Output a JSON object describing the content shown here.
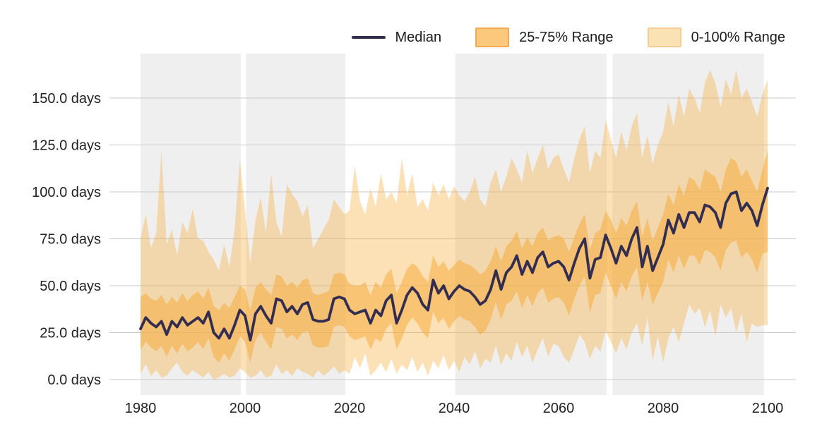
{
  "chart_data": {
    "type": "line",
    "title": "",
    "xlabel": "",
    "ylabel": "",
    "unit": "days",
    "x_start": 1980,
    "x_end": 2100,
    "x_step": 1,
    "x_ticks": [
      1980,
      2000,
      2020,
      2040,
      2060,
      2080,
      2100
    ],
    "y_ticks": [
      0,
      25,
      50,
      75,
      100,
      125,
      150
    ],
    "y_tick_labels": [
      "0.0 days",
      "25.0 days",
      "50.0 days",
      "75.0 days",
      "100.0 days",
      "125.0 days",
      "150.0 days"
    ],
    "ylim": [
      0,
      150
    ],
    "legend_position": "top-right",
    "grid": true,
    "colors": {
      "median_line": "#332D51",
      "range_fill": "#F6AE3F",
      "period_band": "#EFEFEF",
      "gridline": "#C9C9C9",
      "tick_text": "#222222",
      "background": "#FFFFFF"
    },
    "layout_hints": {
      "highlight_periods": [
        [
          1980,
          1999.2
        ],
        [
          2000.2,
          2019.2
        ],
        [
          2040.2,
          2069.2
        ],
        [
          2070.3,
          2099.3
        ]
      ]
    },
    "series": [
      {
        "name": "Median",
        "type": "line",
        "color": "#332D51",
        "values": [
          27,
          33,
          30,
          28,
          31,
          24,
          31,
          28,
          33,
          29,
          31,
          33,
          30,
          36,
          25,
          22,
          27,
          22,
          29,
          37,
          34,
          21,
          35,
          39,
          34,
          30,
          43,
          42,
          36,
          39,
          35,
          40,
          41,
          32,
          31,
          31,
          32,
          43,
          44,
          43,
          37,
          35,
          36,
          37,
          30,
          37,
          34,
          42,
          45,
          30,
          37,
          45,
          49,
          46,
          40,
          37,
          53,
          46,
          50,
          43,
          47,
          50,
          48,
          47,
          44,
          40,
          42,
          48,
          58,
          48,
          57,
          60,
          66,
          56,
          63,
          57,
          65,
          68,
          60,
          62,
          63,
          60,
          53,
          62,
          70,
          75,
          54,
          64,
          65,
          77,
          70,
          62,
          71,
          66,
          75,
          81,
          60,
          71,
          58,
          65,
          72,
          85,
          78,
          88,
          81,
          89,
          89,
          84,
          93,
          92,
          89,
          81,
          94,
          99,
          100,
          90,
          94,
          90,
          82,
          93,
          102
        ]
      },
      {
        "name": "25-75% Range",
        "type": "band",
        "color": "#F6AE3F",
        "opacity": 0.55,
        "lower": [
          16,
          20,
          17,
          15,
          18,
          12,
          18,
          14,
          19,
          15,
          17,
          20,
          16,
          22,
          12,
          9,
          14,
          10,
          16,
          23,
          20,
          9,
          21,
          25,
          20,
          16,
          28,
          27,
          22,
          24,
          21,
          25,
          26,
          18,
          17,
          17,
          18,
          28,
          29,
          28,
          23,
          21,
          22,
          23,
          16,
          22,
          20,
          27,
          30,
          16,
          22,
          29,
          33,
          30,
          25,
          22,
          36,
          30,
          33,
          27,
          31,
          34,
          32,
          31,
          28,
          24,
          26,
          32,
          41,
          32,
          40,
          42,
          47,
          38,
          45,
          39,
          46,
          49,
          41,
          43,
          44,
          41,
          34,
          43,
          50,
          55,
          36,
          45,
          46,
          57,
          50,
          43,
          52,
          47,
          55,
          60,
          42,
          52,
          40,
          46,
          52,
          64,
          57,
          66,
          59,
          66,
          66,
          61,
          69,
          68,
          65,
          58,
          69,
          73,
          74,
          65,
          68,
          64,
          57,
          67,
          68
        ],
        "upper": [
          44,
          46,
          43,
          42,
          45,
          40,
          44,
          41,
          46,
          42,
          45,
          47,
          43,
          49,
          39,
          37,
          41,
          38,
          44,
          50,
          48,
          37,
          49,
          52,
          48,
          45,
          56,
          55,
          50,
          52,
          49,
          53,
          54,
          46,
          45,
          46,
          47,
          56,
          57,
          56,
          51,
          50,
          50,
          52,
          45,
          52,
          49,
          56,
          59,
          46,
          52,
          59,
          62,
          60,
          55,
          52,
          66,
          60,
          63,
          58,
          61,
          64,
          62,
          61,
          59,
          56,
          58,
          63,
          71,
          63,
          71,
          74,
          79,
          70,
          76,
          71,
          78,
          81,
          74,
          76,
          77,
          75,
          68,
          76,
          83,
          88,
          69,
          78,
          80,
          90,
          85,
          78,
          86,
          82,
          90,
          95,
          76,
          86,
          74,
          81,
          88,
          99,
          93,
          104,
          98,
          108,
          106,
          101,
          112,
          110,
          108,
          100,
          112,
          118,
          116,
          108,
          112,
          106,
          100,
          112,
          122
        ]
      },
      {
        "name": "0-100% Range",
        "type": "band",
        "color": "#F6AE3F",
        "opacity": 0.38,
        "lower": [
          3,
          8,
          2,
          5,
          1,
          2,
          6,
          9,
          4,
          2,
          5,
          3,
          1,
          4,
          0,
          1,
          3,
          1,
          2,
          6,
          4,
          1,
          2,
          5,
          1,
          2,
          8,
          3,
          5,
          2,
          6,
          4,
          3,
          1,
          5,
          2,
          4,
          7,
          3,
          5,
          3,
          12,
          6,
          14,
          2,
          5,
          9,
          4,
          11,
          3,
          8,
          5,
          12,
          4,
          9,
          2,
          10,
          6,
          13,
          5,
          10,
          4,
          12,
          8,
          15,
          6,
          11,
          9,
          18,
          8,
          14,
          10,
          20,
          12,
          18,
          9,
          16,
          22,
          12,
          19,
          18,
          12,
          9,
          16,
          24,
          20,
          11,
          18,
          15,
          26,
          20,
          14,
          22,
          16,
          25,
          30,
          18,
          33,
          10,
          23,
          9,
          22,
          28,
          20,
          30,
          40,
          35,
          38,
          28,
          37,
          23,
          40,
          33,
          38,
          25,
          35,
          20,
          30,
          28,
          29,
          29
        ],
        "upper": [
          75,
          88,
          70,
          78,
          122,
          72,
          80,
          66,
          84,
          78,
          91,
          75,
          74,
          68,
          64,
          58,
          72,
          60,
          80,
          117,
          90,
          62,
          85,
          97,
          78,
          110,
          84,
          76,
          104,
          99,
          95,
          87,
          93,
          70,
          75,
          80,
          85,
          96,
          92,
          88,
          90,
          114,
          95,
          88,
          102,
          92,
          110,
          96,
          100,
          94,
          118,
          98,
          110,
          92,
          96,
          90,
          105,
          98,
          104,
          96,
          103,
          98,
          95,
          100,
          108,
          96,
          92,
          105,
          112,
          100,
          108,
          118,
          112,
          105,
          122,
          110,
          118,
          125,
          112,
          118,
          120,
          112,
          105,
          118,
          128,
          135,
          110,
          122,
          118,
          138,
          128,
          118,
          132,
          122,
          135,
          142,
          118,
          130,
          115,
          125,
          132,
          148,
          135,
          152,
          140,
          155,
          150,
          142,
          158,
          165,
          158,
          145,
          160,
          152,
          165,
          150,
          155,
          148,
          140,
          152,
          160
        ]
      }
    ]
  },
  "legend": {
    "median_label": "Median",
    "mid_range_label": "25-75% Range",
    "full_range_label": "0-100% Range"
  }
}
